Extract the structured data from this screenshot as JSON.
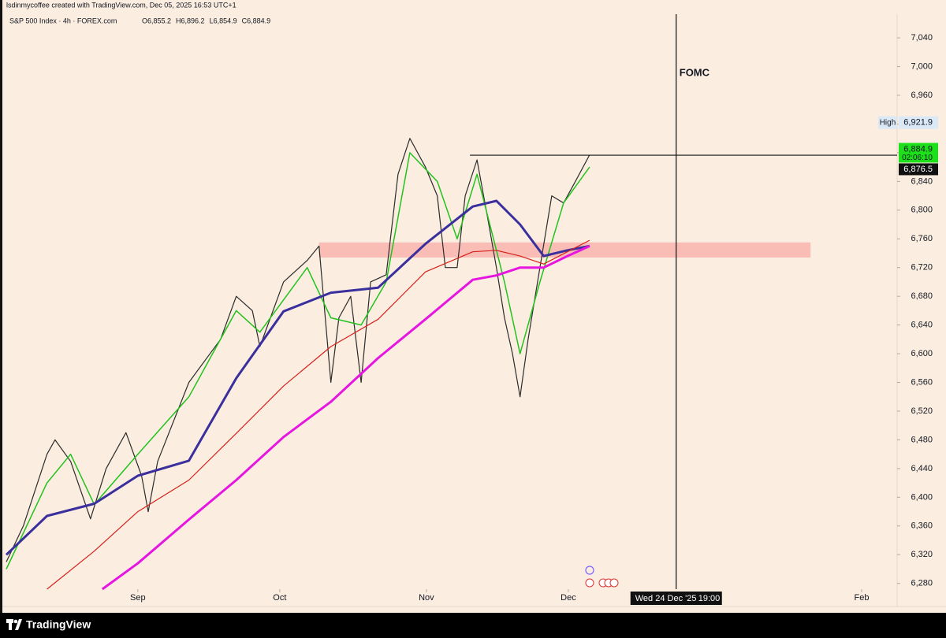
{
  "chart_data": {
    "type": "line",
    "credit": "lsdinmycoffee created with TradingView.com, Dec 05, 2025 16:53 UTC+1",
    "title": "S&P 500 Index · 4h · FOREX.com",
    "ohlc": [
      {
        "value": 6855.2,
        "label": "O6,855.2"
      },
      {
        "value": 6896.2,
        "label": "H6,896.2"
      },
      {
        "value": 6854.9,
        "label": "L6,854.9"
      },
      {
        "value": 6884.9,
        "label": "C6,884.9"
      }
    ],
    "xlim": [
      3.2,
      191.5
    ],
    "ylim": [
      6272,
      7073
    ],
    "xticks": [
      {
        "value": 31,
        "label": "Sep"
      },
      {
        "value": 61,
        "label": "Oct"
      },
      {
        "value": 92,
        "label": "Nov"
      },
      {
        "value": 122,
        "label": "Dec"
      },
      {
        "value": 184,
        "label": "Feb"
      }
    ],
    "yticks": [
      {
        "value": 6280,
        "label": "6,280"
      },
      {
        "value": 6320,
        "label": "6,320"
      },
      {
        "value": 6360,
        "label": "6,360"
      },
      {
        "value": 6400,
        "label": "6,400"
      },
      {
        "value": 6440,
        "label": "6,440"
      },
      {
        "value": 6480,
        "label": "6,480"
      },
      {
        "value": 6520,
        "label": "6,520"
      },
      {
        "value": 6560,
        "label": "6,560"
      },
      {
        "value": 6600,
        "label": "6,600"
      },
      {
        "value": 6640,
        "label": "6,640"
      },
      {
        "value": 6680,
        "label": "6,680"
      },
      {
        "value": 6720,
        "label": "6,720"
      },
      {
        "value": 6760,
        "label": "6,760"
      },
      {
        "value": 6800,
        "label": "6,800"
      },
      {
        "value": 6840,
        "label": "6,840"
      },
      {
        "value": 6880,
        "label": "6,880"
      },
      {
        "value": 6920,
        "label": "6,920"
      },
      {
        "value": 6960,
        "label": "6,960"
      },
      {
        "value": 7000,
        "label": "7,000"
      },
      {
        "value": 7040,
        "label": "7,040"
      }
    ],
    "series": [
      {
        "color": "#2b2b2b",
        "width": 1.2,
        "x": [
          3.2,
          6.8,
          11.8,
          13.5,
          16.8,
          21,
          24.3,
          28.5,
          31.8,
          33.2,
          35.2,
          41.8,
          48.5,
          51.8,
          55.2,
          56.8,
          61.8,
          66.8,
          69.3,
          71.8,
          73.5,
          76,
          78.2,
          80.2,
          83.5,
          86,
          88.5,
          91.8,
          94.3,
          96,
          98.5,
          100.2,
          102.7,
          105.2,
          106.8,
          108.5,
          110.2,
          111.8,
          113.5,
          116,
          118.5,
          121,
          123.5,
          126.5
        ],
        "values": [
          6310,
          6360,
          6460,
          6480,
          6450,
          6370,
          6440,
          6490,
          6430,
          6380,
          6450,
          6560,
          6620,
          6680,
          6660,
          6610,
          6700,
          6730,
          6750,
          6560,
          6650,
          6680,
          6560,
          6700,
          6710,
          6850,
          6900,
          6860,
          6820,
          6720,
          6720,
          6820,
          6870,
          6780,
          6720,
          6650,
          6600,
          6540,
          6620,
          6720,
          6820,
          6810,
          6840,
          6877
        ]
      },
      {
        "color": "#22c21e",
        "width": 1.5,
        "x": [
          3.2,
          11.8,
          16.8,
          21.8,
          31,
          41.8,
          51.8,
          56.8,
          66.8,
          71.8,
          78.2,
          83.5,
          88.5,
          94.3,
          98.5,
          102.7,
          108.5,
          111.8,
          116,
          121,
          126.5
        ],
        "values": [
          6300,
          6420,
          6460,
          6390,
          6460,
          6540,
          6660,
          6630,
          6720,
          6650,
          6640,
          6700,
          6880,
          6840,
          6760,
          6850,
          6700,
          6600,
          6700,
          6810,
          6860
        ]
      },
      {
        "color": "#3b2f9e",
        "width": 3,
        "x": [
          3.2,
          11.8,
          21.8,
          31,
          41.8,
          51.8,
          61.8,
          71.8,
          81.8,
          91.8,
          101.8,
          106.8,
          111.8,
          116.8,
          121.8,
          126.5
        ],
        "values": [
          6320,
          6374,
          6391,
          6430,
          6451,
          6566,
          6659,
          6685,
          6692,
          6753,
          6805,
          6813,
          6780,
          6736,
          6744,
          6750
        ]
      },
      {
        "color": "#d6201c",
        "width": 1.2,
        "x": [
          11.8,
          21.8,
          31,
          41.8,
          51.8,
          61.8,
          71.8,
          81.8,
          91.8,
          101.8,
          106.8,
          111.8,
          116.8,
          121.8,
          126.5
        ],
        "values": [
          6272,
          6325,
          6380,
          6424,
          6489,
          6555,
          6610,
          6648,
          6714,
          6742,
          6744,
          6736,
          6725,
          6742,
          6758
        ]
      },
      {
        "color": "#e615e0",
        "width": 3,
        "x": [
          23.5,
          31,
          41.8,
          51.8,
          61.8,
          71.8,
          81.8,
          91.8,
          101.8,
          106.8,
          111.8,
          116.8,
          121.8,
          126.5
        ],
        "values": [
          6272,
          6308,
          6369,
          6424,
          6484,
          6533,
          6594,
          6648,
          6703,
          6709,
          6720,
          6720,
          6736,
          6750
        ]
      }
    ],
    "zone": {
      "x": [
        69.3,
        173.2
      ],
      "y": [
        6734,
        6755
      ],
      "color": "#f8b4ad"
    },
    "level_x": 101.2,
    "crosshair_x": 144.8,
    "crosshair_price": {
      "value": 6876.5,
      "label": "6,876.5"
    },
    "crosshair_time": "Wed 24 Dec '25",
    "crosshair_clock": "19:00",
    "annotation": "FOMC",
    "last_price": {
      "value": 6884.9,
      "label": "6,884.9",
      "color": "#1ee01a"
    },
    "countdown": "02:06:10",
    "high": {
      "label": "High",
      "value": 6921.9,
      "value_label": "6,921.9"
    },
    "brand": "TradingView"
  }
}
